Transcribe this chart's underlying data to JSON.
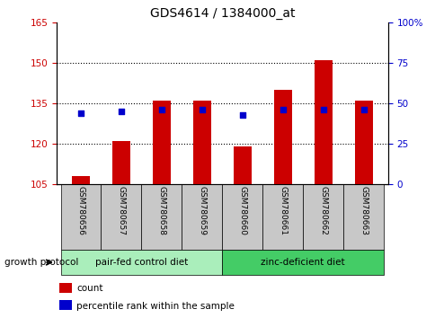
{
  "title": "GDS4614 / 1384000_at",
  "samples": [
    "GSM780656",
    "GSM780657",
    "GSM780658",
    "GSM780659",
    "GSM780660",
    "GSM780661",
    "GSM780662",
    "GSM780663"
  ],
  "counts": [
    108,
    121,
    136,
    136,
    119,
    140,
    151,
    136
  ],
  "percentile_ranks": [
    44,
    45,
    46,
    46,
    43,
    46,
    46,
    46
  ],
  "ylim_left": [
    105,
    165
  ],
  "ylim_right": [
    0,
    100
  ],
  "yticks_left": [
    105,
    120,
    135,
    150,
    165
  ],
  "yticks_right": [
    0,
    25,
    50,
    75,
    100
  ],
  "ytick_labels_right": [
    "0",
    "25",
    "50",
    "75",
    "100%"
  ],
  "bar_color": "#cc0000",
  "dot_color": "#0000cc",
  "bar_bottom": 105,
  "groups": [
    {
      "label": "pair-fed control diet",
      "indices": [
        0,
        1,
        2,
        3
      ],
      "color": "#aaeebb"
    },
    {
      "label": "zinc-deficient diet",
      "indices": [
        4,
        5,
        6,
        7
      ],
      "color": "#44cc66"
    }
  ],
  "group_label": "growth protocol",
  "legend_items": [
    {
      "label": "count",
      "color": "#cc0000"
    },
    {
      "label": "percentile rank within the sample",
      "color": "#0000cc"
    }
  ],
  "grid_yticks": [
    120,
    135,
    150
  ],
  "tick_color_left": "#cc0000",
  "tick_color_right": "#0000cc",
  "sample_box_color": "#c8c8c8",
  "bar_width": 0.45
}
